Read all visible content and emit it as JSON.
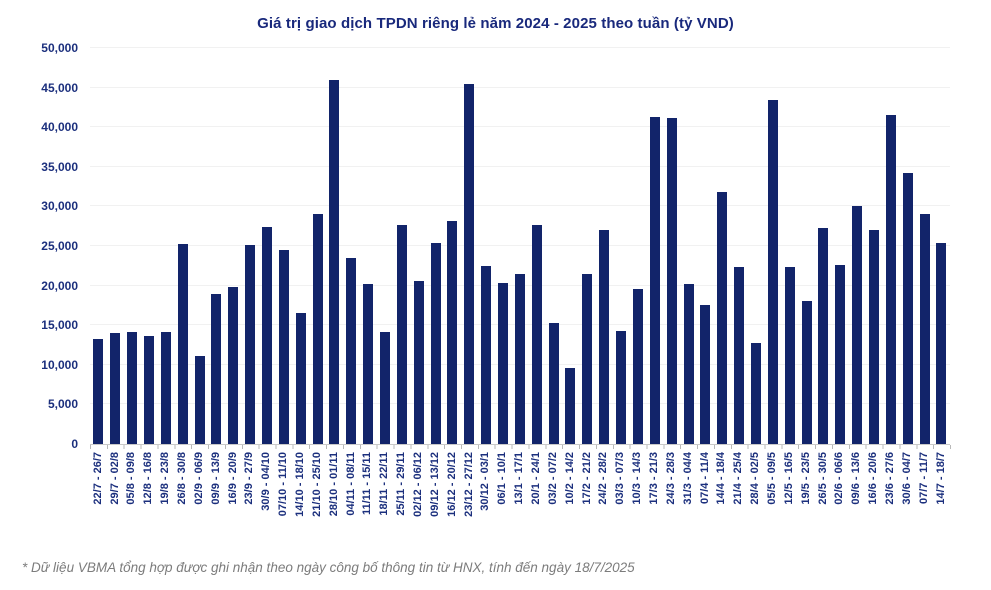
{
  "footnote": "* Dữ liệu VBMA tổng hợp được ghi nhận theo ngày công bố thông tin từ HNX, tính đến ngày 18/7/2025",
  "colors": {
    "bar": "#12246a",
    "title_text": "#19297c",
    "axis_label_text": "#1b2f7d",
    "gridline": "#f1f1f1",
    "axis_line": "#c9c9c9",
    "footnote_text": "#7c7c7c"
  },
  "chart_data": {
    "type": "bar",
    "title": "Giá trị giao dịch TPDN riêng lẻ năm 2024 - 2025 theo tuần (tỷ VND)",
    "xlabel": "",
    "ylabel": "",
    "ylim": [
      0,
      50000
    ],
    "grid": true,
    "legend": false,
    "y_ticks": [
      0,
      5000,
      10000,
      15000,
      20000,
      25000,
      30000,
      35000,
      40000,
      45000,
      50000
    ],
    "y_tick_labels": [
      "0",
      "5,000",
      "10,000",
      "15,000",
      "20,000",
      "25,000",
      "30,000",
      "35,000",
      "40,000",
      "45,000",
      "50,000"
    ],
    "categories": [
      "22/7 - 26/7",
      "29/7 - 02/8",
      "05/8 - 09/8",
      "12/8 - 16/8",
      "19/8 - 23/8",
      "26/8 - 30/8",
      "02/9 - 06/9",
      "09/9 - 13/9",
      "16/9 - 20/9",
      "23/9 - 27/9",
      "30/9 - 04/10",
      "07/10 - 11/10",
      "14/10 - 18/10",
      "21/10 - 25/10",
      "28/10 - 01/11",
      "04/11 - 08/11",
      "11/11 - 15/11",
      "18/11 - 22/11",
      "25/11 - 29/11",
      "02/12 - 06/12",
      "09/12 - 13/12",
      "16/12 - 20/12",
      "23/12 - 27/12",
      "30/12 - 03/1",
      "06/1 - 10/1",
      "13/1 - 17/1",
      "20/1 - 24/1",
      "03/2 - 07/2",
      "10/2 - 14/2",
      "17/2 - 21/2",
      "24/2 - 28/2",
      "03/3 - 07/3",
      "10/3 - 14/3",
      "17/3 - 21/3",
      "24/3 - 28/3",
      "31/3 - 04/4",
      "07/4 - 11/4",
      "14/4 - 18/4",
      "21/4 - 25/4",
      "28/4 - 02/5",
      "05/5 - 09/5",
      "12/5 - 16/5",
      "19/5 - 23/5",
      "26/5 - 30/5",
      "02/6 - 06/6",
      "09/6 - 13/6",
      "16/6 - 20/6",
      "23/6 - 27/6",
      "30/6 - 04/7",
      "07/7 - 11/7",
      "14/7 - 18/7"
    ],
    "values": [
      13300,
      14000,
      14100,
      13600,
      14100,
      25300,
      11100,
      18900,
      19800,
      25100,
      27400,
      24500,
      16600,
      29000,
      45900,
      23500,
      20200,
      14200,
      27700,
      20600,
      25400,
      28100,
      45400,
      22500,
      20300,
      21500,
      27700,
      15300,
      9600,
      21500,
      27000,
      14300,
      19600,
      41300,
      41200,
      20200,
      17600,
      31800,
      22300,
      12700,
      43400,
      22400,
      18000,
      27300,
      22600,
      30100,
      27000,
      41500,
      34200,
      29000,
      25400
    ]
  }
}
